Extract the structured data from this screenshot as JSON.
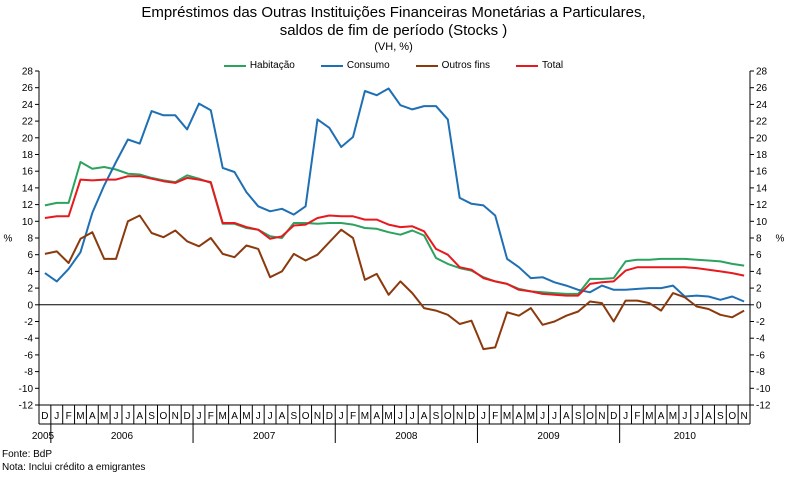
{
  "chart_data": {
    "type": "line",
    "title_line1": "Empréstimos das Outras Instituições Financeiras Monetárias a Particulares,",
    "title_line2": "saldos de fim de período (Stocks )",
    "subtitle": "(VH, %)",
    "ylabel_left": "%",
    "ylabel_right": "%",
    "ylim": [
      -12,
      28
    ],
    "yticks": [
      -12,
      -10,
      -8,
      -6,
      -4,
      -2,
      0,
      2,
      4,
      6,
      8,
      10,
      12,
      14,
      16,
      18,
      20,
      22,
      24,
      26,
      28
    ],
    "grid": false,
    "legend_position": "top",
    "month_labels": [
      "D",
      "J",
      "F",
      "M",
      "A",
      "M",
      "J",
      "J",
      "A",
      "S",
      "O",
      "N",
      "D",
      "J",
      "F",
      "M",
      "A",
      "M",
      "J",
      "J",
      "A",
      "S",
      "O",
      "N",
      "D",
      "J",
      "F",
      "M",
      "A",
      "M",
      "J",
      "J",
      "A",
      "S",
      "O",
      "N",
      "D",
      "J",
      "F",
      "M",
      "A",
      "M",
      "J",
      "J",
      "A",
      "S",
      "O",
      "N",
      "D",
      "J",
      "F",
      "M",
      "A",
      "M",
      "J",
      "J",
      "A",
      "S",
      "O",
      "N"
    ],
    "year_labels": [
      "2005",
      "2006",
      "2007",
      "2008",
      "2009",
      "2010"
    ],
    "series": [
      {
        "name": "Habitação",
        "color": "#2ca25f",
        "values": [
          11.9,
          12.2,
          12.2,
          17.1,
          16.3,
          16.5,
          16.2,
          15.7,
          15.6,
          15.2,
          14.9,
          14.7,
          15.5,
          15.1,
          14.6,
          9.7,
          9.7,
          9.2,
          9.0,
          8.2,
          8.0,
          9.8,
          9.8,
          9.7,
          9.8,
          9.8,
          9.6,
          9.2,
          9.1,
          8.7,
          8.4,
          8.9,
          8.3,
          5.6,
          4.9,
          4.4,
          4.1,
          3.3,
          2.8,
          2.5,
          1.9,
          1.6,
          1.5,
          1.4,
          1.3,
          1.3,
          3.1,
          3.1,
          3.2,
          5.2,
          5.4,
          5.4,
          5.5,
          5.5,
          5.5,
          5.4,
          5.3,
          5.2,
          4.9,
          4.7
        ]
      },
      {
        "name": "Consumo",
        "color": "#1f6fb4",
        "values": [
          3.8,
          2.8,
          4.3,
          6.3,
          11.0,
          14.3,
          17.1,
          19.8,
          19.3,
          23.2,
          22.7,
          22.7,
          21.0,
          24.1,
          23.3,
          16.4,
          15.9,
          13.5,
          11.8,
          11.2,
          11.5,
          10.8,
          11.8,
          22.2,
          21.2,
          18.9,
          20.1,
          25.6,
          25.1,
          25.9,
          23.9,
          23.4,
          23.8,
          23.8,
          22.2,
          12.8,
          12.1,
          11.9,
          10.7,
          5.5,
          4.5,
          3.2,
          3.3,
          2.7,
          2.3,
          1.8,
          1.5,
          2.3,
          1.8,
          1.8,
          1.9,
          2.0,
          2.0,
          2.3,
          1.0,
          1.1,
          1.0,
          0.6,
          1.0,
          0.4
        ]
      },
      {
        "name": "Outros fins",
        "color": "#8b3a0e",
        "values": [
          6.1,
          6.4,
          5.0,
          7.9,
          8.7,
          5.5,
          5.5,
          10.0,
          10.7,
          8.6,
          8.1,
          8.9,
          7.6,
          7.0,
          8.0,
          6.1,
          5.7,
          7.1,
          6.7,
          3.3,
          4.0,
          6.1,
          5.3,
          6.0,
          7.5,
          9.0,
          8.0,
          3.0,
          3.7,
          1.2,
          2.8,
          1.4,
          -0.4,
          -0.7,
          -1.2,
          -2.3,
          -1.9,
          -5.3,
          -5.1,
          -0.9,
          -1.3,
          -0.4,
          -2.4,
          -2.0,
          -1.3,
          -0.8,
          0.4,
          0.2,
          -2.0,
          0.5,
          0.5,
          0.2,
          -0.7,
          1.4,
          0.9,
          -0.2,
          -0.5,
          -1.2,
          -1.5,
          -0.7
        ]
      },
      {
        "name": "Total",
        "color": "#e8191e",
        "values": [
          10.4,
          10.6,
          10.6,
          15.0,
          14.9,
          15.0,
          15.0,
          15.4,
          15.4,
          15.1,
          14.8,
          14.6,
          15.2,
          15.0,
          14.7,
          9.8,
          9.8,
          9.3,
          9.0,
          7.9,
          8.2,
          9.5,
          9.6,
          10.4,
          10.7,
          10.6,
          10.6,
          10.2,
          10.2,
          9.6,
          9.3,
          9.4,
          8.8,
          6.7,
          6.0,
          4.5,
          4.2,
          3.2,
          2.8,
          2.5,
          1.8,
          1.6,
          1.3,
          1.2,
          1.1,
          1.1,
          2.5,
          2.7,
          2.8,
          4.1,
          4.5,
          4.5,
          4.5,
          4.5,
          4.5,
          4.4,
          4.2,
          4.0,
          3.8,
          3.5
        ]
      }
    ]
  },
  "footer": {
    "source": "Fonte: BdP",
    "note": "Nota: Inclui crédito a emigrantes"
  }
}
